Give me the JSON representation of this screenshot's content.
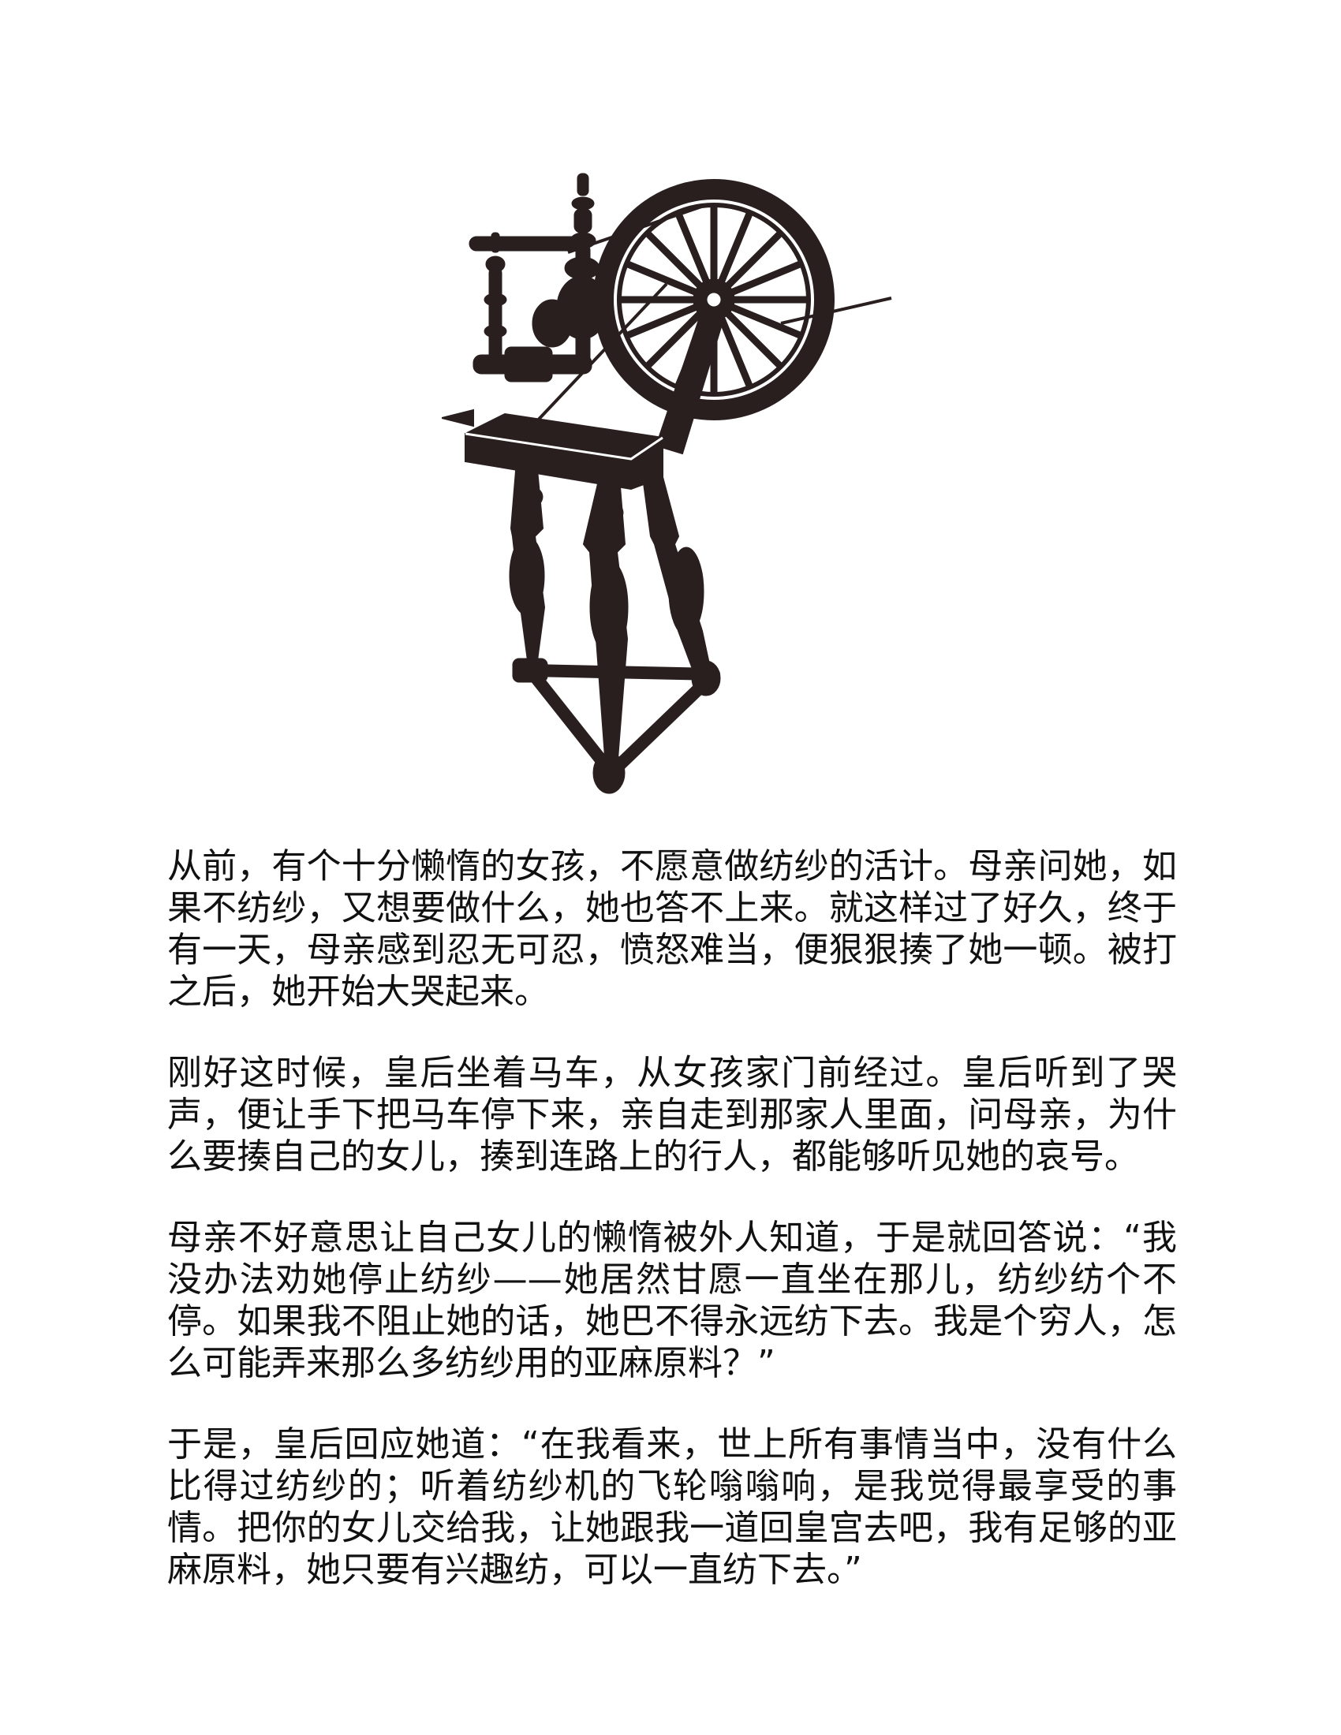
{
  "illustration": {
    "icon": "spinning-wheel-illustration",
    "ink_color": "#2a1f1f"
  },
  "story": {
    "paragraphs": [
      "从前，有个十分懒惰的女孩，不愿意做纺纱的活计。母亲问她，如果不纺纱，又想要做什么，她也答不上来。就这样过了好久，终于有一天，母亲感到忍无可忍，愤怒难当，便狠狠揍了她一顿。被打之后，她开始大哭起来。",
      "刚好这时候，皇后坐着马车，从女孩家门前经过。皇后听到了哭声，便让手下把马车停下来，亲自走到那家人里面，问母亲，为什么要揍自己的女儿，揍到连路上的行人，都能够听见她的哀号。",
      "母亲不好意思让自己女儿的懒惰被外人知道，于是就回答说：“我没办法劝她停止纺纱——她居然甘愿一直坐在那儿，纺纱纺个不停。如果我不阻止她的话，她巴不得永远纺下去。我是个穷人，怎么可能弄来那么多纺纱用的亚麻原料？”",
      "于是，皇后回应她道：“在我看来，世上所有事情当中，没有什么比得过纺纱的；听着纺纱机的飞轮嗡嗡响，是我觉得最享受的事情。把你的女儿交给我，让她跟我一道回皇宫去吧，我有足够的亚麻原料，她只要有兴趣纺，可以一直纺下去。”"
    ]
  }
}
